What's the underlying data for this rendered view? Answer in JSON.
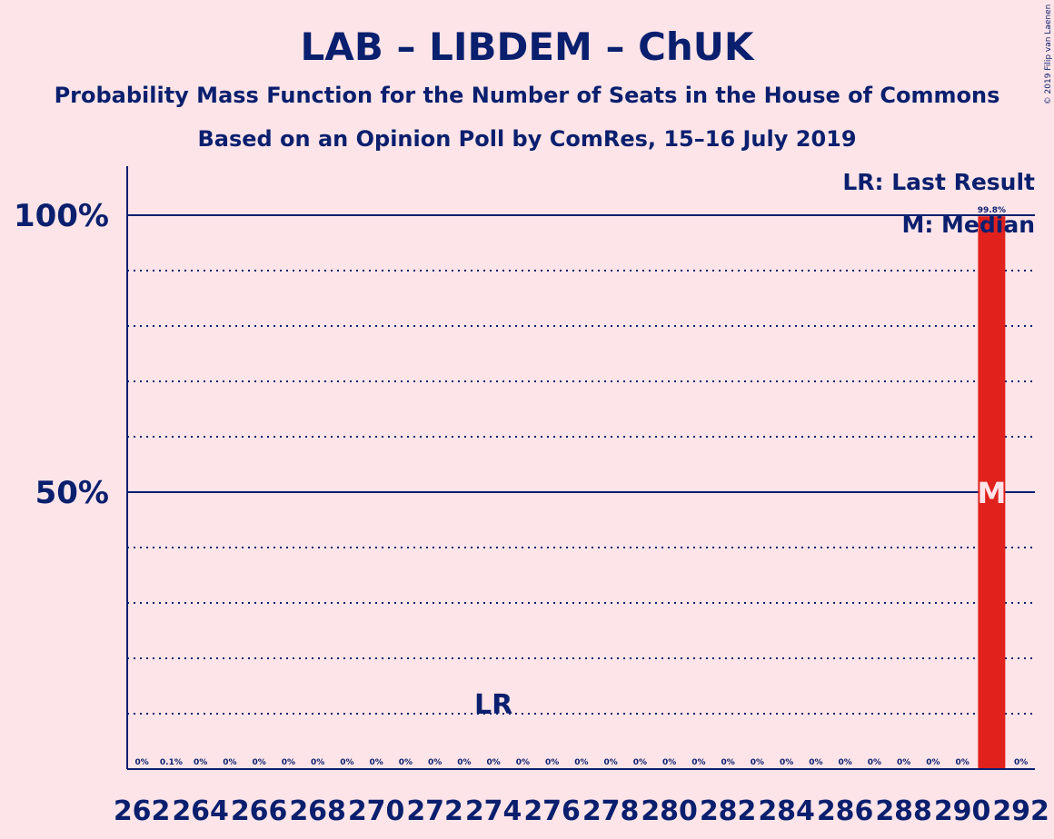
{
  "chart_data": {
    "type": "bar",
    "title": "LAB – LIBDEM – ChUK",
    "subtitle": "Probability Mass Function for the Number of Seats in the House of Commons",
    "subtitle2": "Based on an Opinion Poll by ComRes, 15–16 July 2019",
    "copyright": "© 2019 Filip van Laenen",
    "legend": {
      "lr": "LR: Last Result",
      "m": "M: Median",
      "placement": "top-right"
    },
    "x_range": [
      262,
      292
    ],
    "x_tick_labels": [
      "262",
      "264",
      "266",
      "268",
      "270",
      "272",
      "274",
      "276",
      "278",
      "280",
      "282",
      "284",
      "286",
      "288",
      "290",
      "292"
    ],
    "ylim": [
      0,
      100
    ],
    "y_tick_labels": [
      {
        "value": 50,
        "label": "50%"
      },
      {
        "value": 100,
        "label": "100%"
      }
    ],
    "gridlines_every": 10,
    "bar_color": "#e0211c",
    "axis_color": "#0a1f6e",
    "seats": [
      262,
      263,
      264,
      265,
      266,
      267,
      268,
      269,
      270,
      271,
      272,
      273,
      274,
      275,
      276,
      277,
      278,
      279,
      280,
      281,
      282,
      283,
      284,
      285,
      286,
      287,
      288,
      289,
      290,
      291,
      292
    ],
    "values": [
      0,
      0.1,
      0,
      0,
      0,
      0,
      0,
      0,
      0,
      0,
      0,
      0,
      0,
      0,
      0,
      0,
      0,
      0,
      0,
      0,
      0,
      0,
      0,
      0,
      0,
      0,
      0,
      0,
      0,
      99.8,
      0
    ],
    "value_labels": [
      "0%",
      "0.1%",
      "0%",
      "0%",
      "0%",
      "0%",
      "0%",
      "0%",
      "0%",
      "0%",
      "0%",
      "0%",
      "0%",
      "0%",
      "0%",
      "0%",
      "0%",
      "0%",
      "0%",
      "0%",
      "0%",
      "0%",
      "0%",
      "0%",
      "0%",
      "0%",
      "0%",
      "0%",
      "0%",
      "99.8%",
      "0%"
    ],
    "last_result": {
      "seat": 274,
      "label": "LR"
    },
    "median": {
      "seat": 291,
      "label": "M"
    }
  }
}
